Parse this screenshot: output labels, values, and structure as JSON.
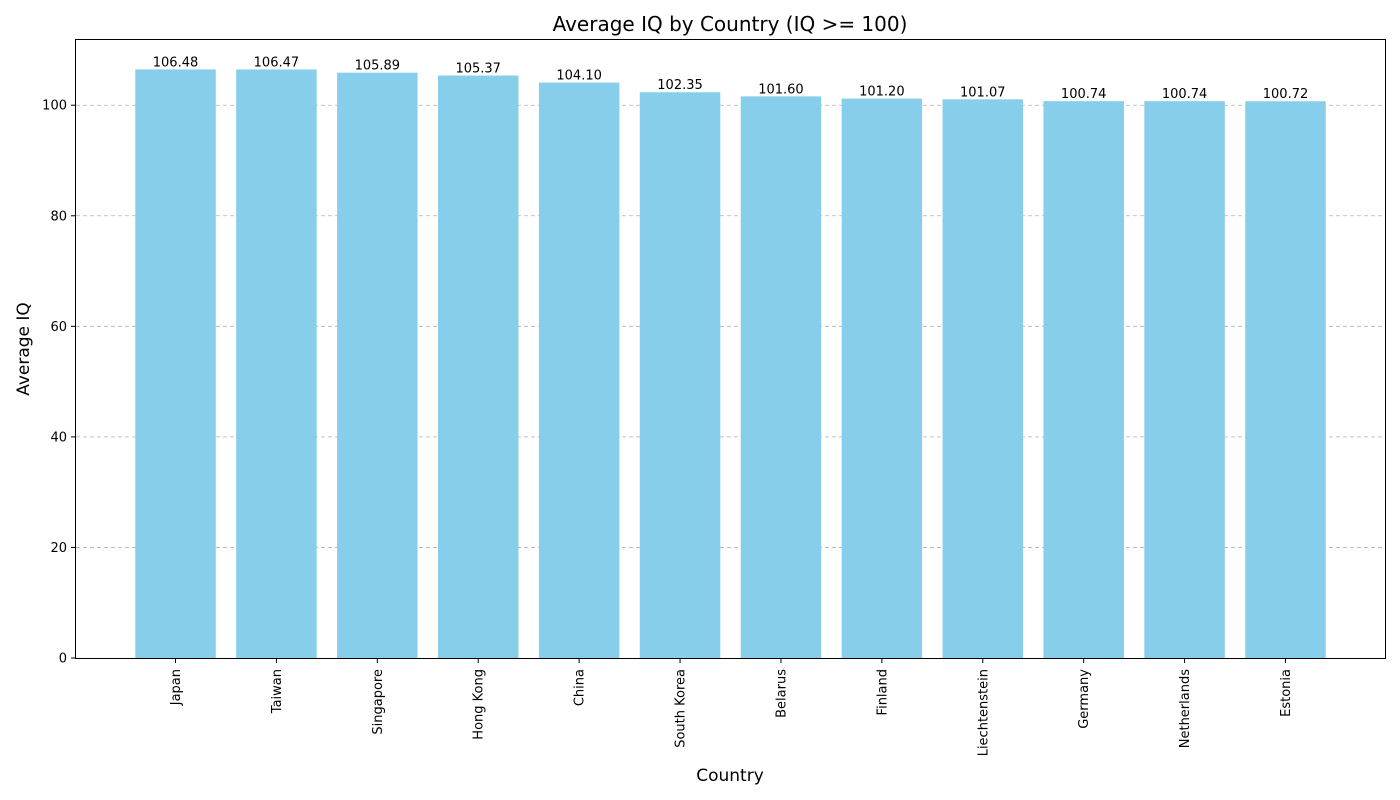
{
  "chart_data": {
    "type": "bar",
    "title": "Average IQ by Country (IQ >= 100)",
    "xlabel": "Country",
    "ylabel": "Average IQ",
    "categories": [
      "Japan",
      "Taiwan",
      "Singapore",
      "Hong Kong",
      "China",
      "South Korea",
      "Belarus",
      "Finland",
      "Liechtenstein",
      "Germany",
      "Netherlands",
      "Estonia"
    ],
    "values": [
      106.48,
      106.47,
      105.89,
      105.37,
      104.1,
      102.35,
      101.6,
      101.2,
      101.07,
      100.74,
      100.74,
      100.72
    ],
    "data_labels": [
      "106.48",
      "106.47",
      "105.89",
      "105.37",
      "104.10",
      "102.35",
      "101.60",
      "101.20",
      "101.07",
      "100.74",
      "100.74",
      "100.72"
    ],
    "y_ticks": [
      0,
      20,
      40,
      60,
      80,
      100
    ],
    "ylim": [
      0,
      111.8
    ],
    "grid": "y-dashed",
    "bar_color": "#87ceeb",
    "x_tick_rotation": "vertical"
  }
}
